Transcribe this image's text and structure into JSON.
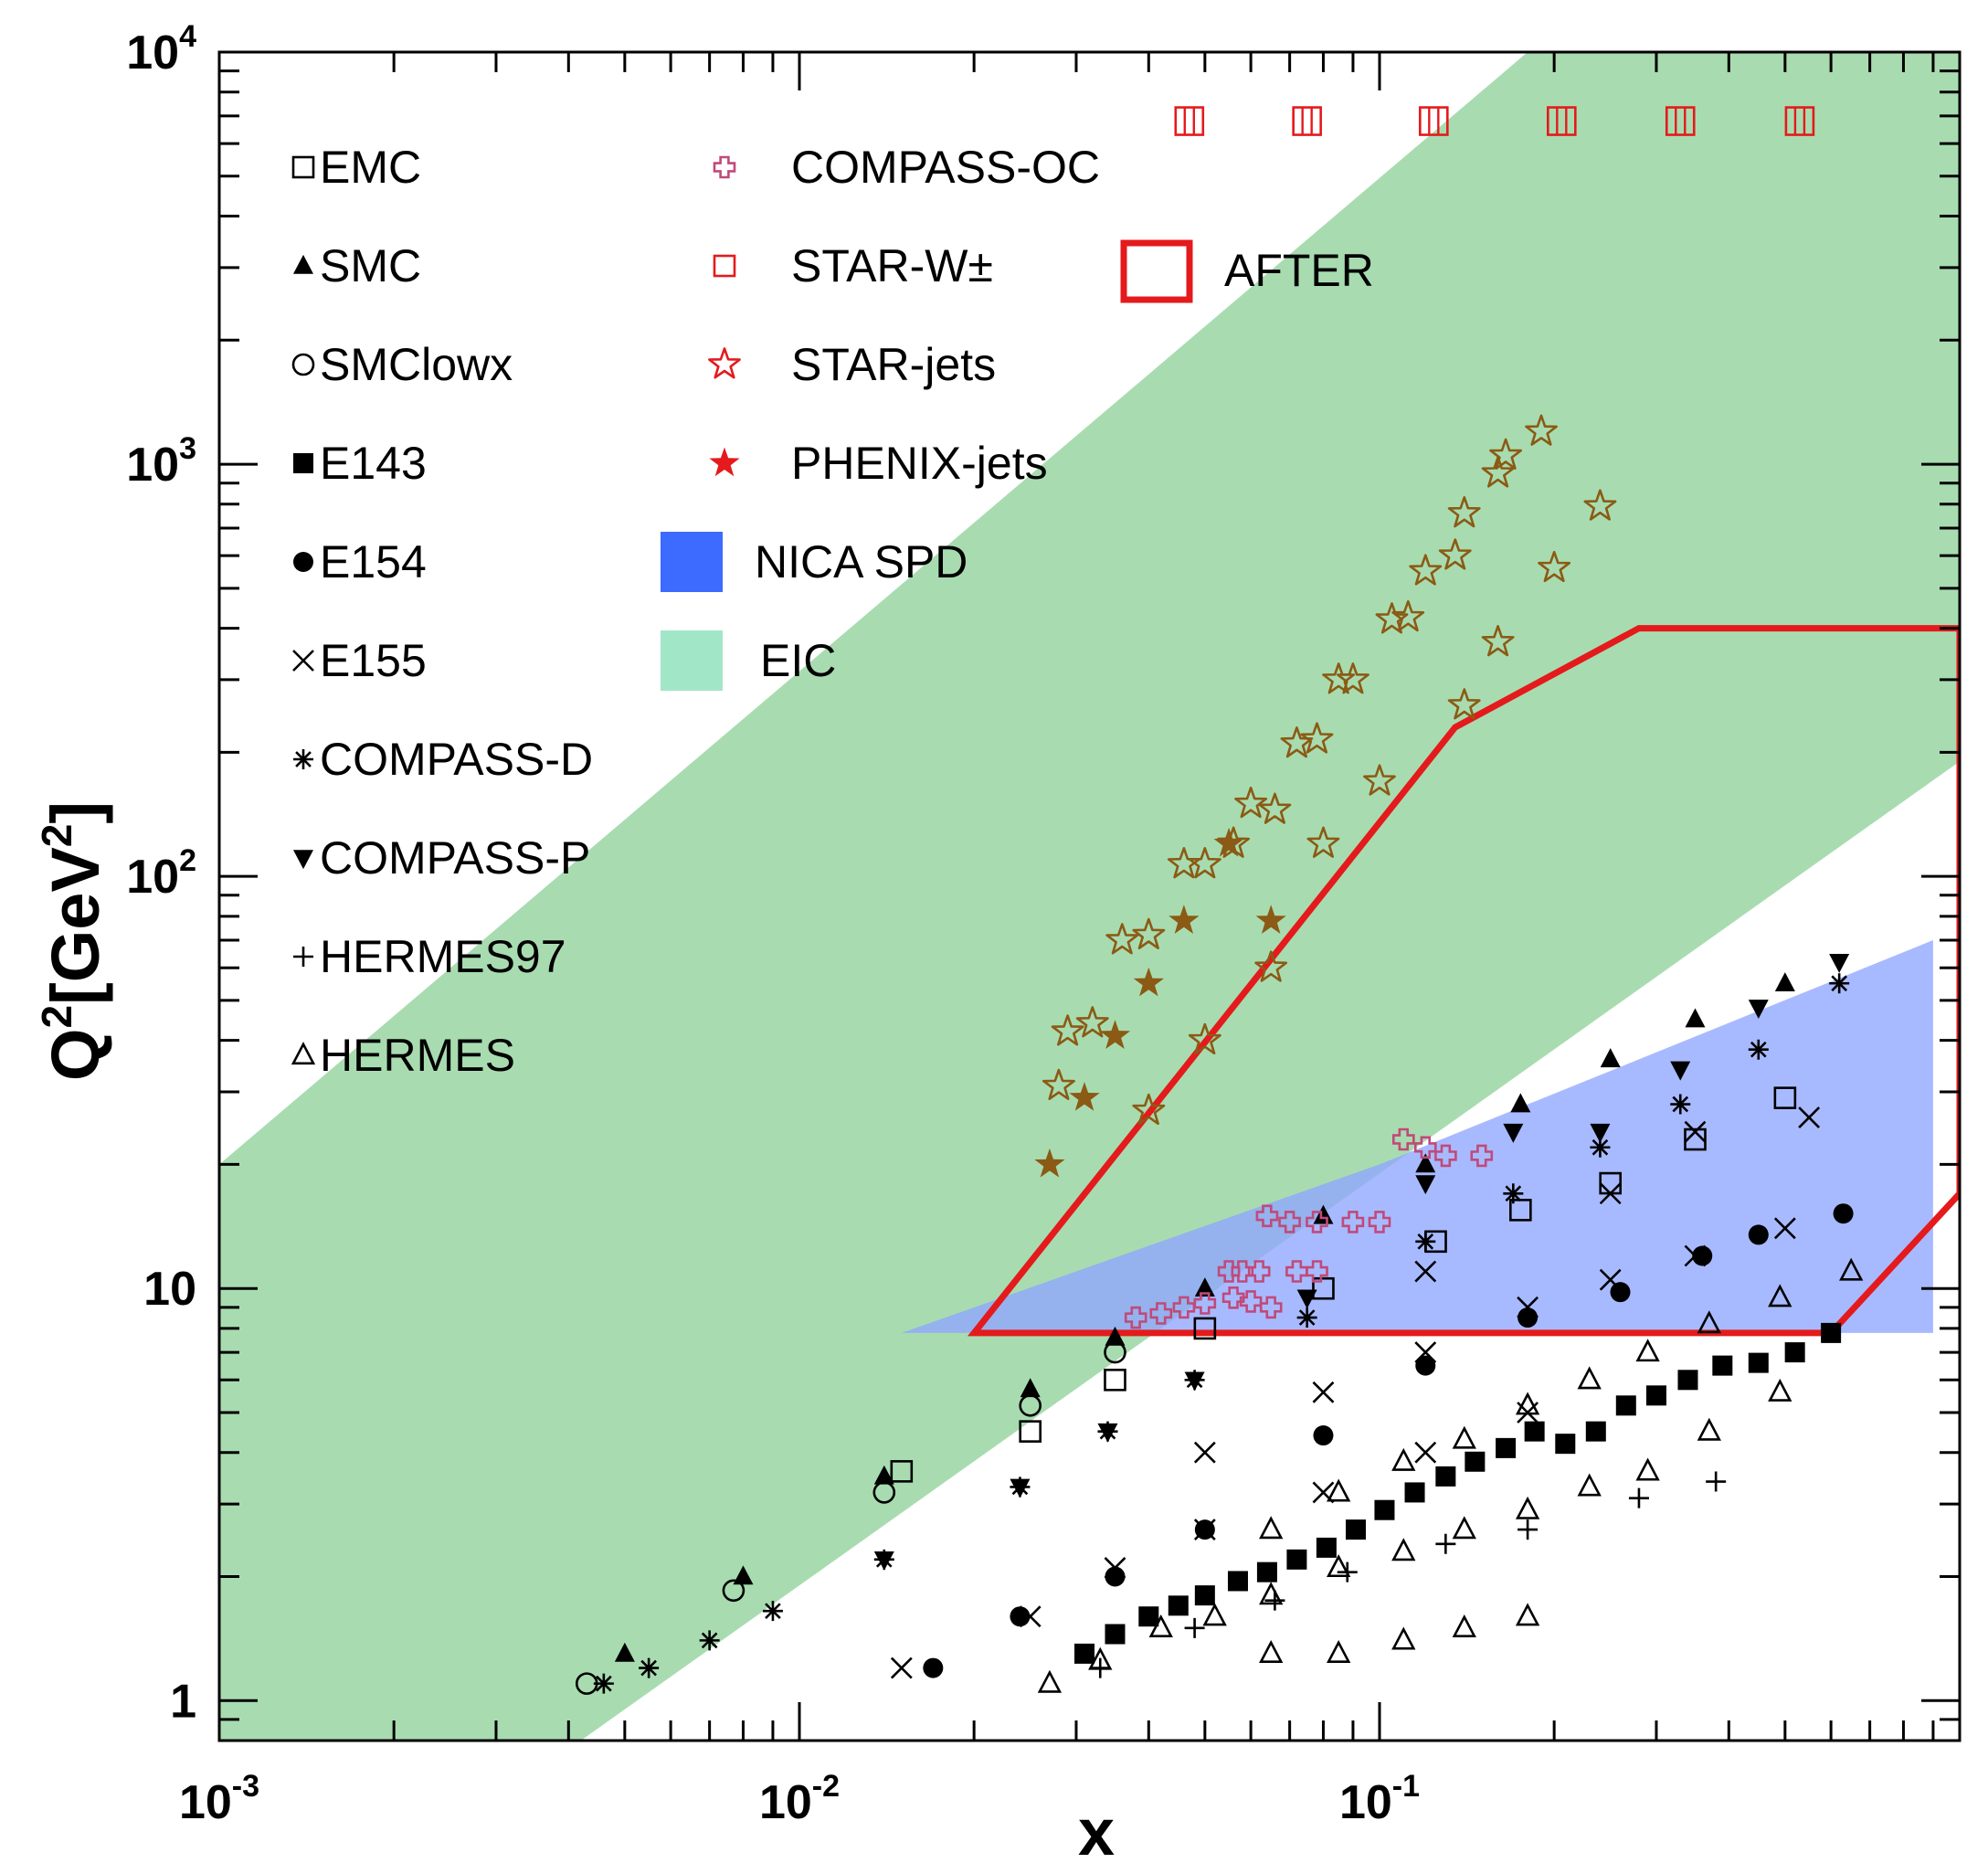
{
  "chart_data": {
    "type": "scatter",
    "title": "",
    "xlabel": "x",
    "ylabel_base": "Q",
    "ylabel_sup": "2",
    "ylabel_rest": "[GeV",
    "ylabel_sup2": "2",
    "ylabel_close": "]",
    "x_scale": "log",
    "y_scale": "log",
    "xlim": [
      0.001,
      1
    ],
    "ylim": [
      0.8,
      10000
    ],
    "grid": false,
    "legend_position": "top-left (inside plot)",
    "x_ticks": [
      {
        "value": 0.001,
        "base": "10",
        "exp": "-3"
      },
      {
        "value": 0.01,
        "base": "10",
        "exp": "-2"
      },
      {
        "value": 0.1,
        "base": "10",
        "exp": "-1"
      }
    ],
    "y_ticks": [
      {
        "value": 1,
        "base": "1",
        "exp": ""
      },
      {
        "value": 10,
        "base": "10",
        "exp": ""
      },
      {
        "value": 100,
        "base": "10",
        "exp": "2"
      },
      {
        "value": 1000,
        "base": "10",
        "exp": "3"
      },
      {
        "value": 10000,
        "base": "10",
        "exp": "4"
      }
    ],
    "regions": [
      {
        "name": "EIC",
        "color": "#a8dcb0",
        "points": [
          [
            0.001,
            20
          ],
          [
            0.001,
            0.8
          ],
          [
            0.0042,
            0.8
          ],
          [
            1,
            190
          ],
          [
            1,
            10000
          ],
          [
            0.18,
            10000
          ]
        ]
      },
      {
        "name": "NICA SPD",
        "color": "#8fa6ff",
        "points": [
          [
            0.015,
            7.8
          ],
          [
            0.9,
            7.8
          ],
          [
            0.9,
            70
          ],
          [
            0.1,
            20
          ]
        ]
      },
      {
        "name": "AFTER",
        "color": "#e41a1c",
        "points": [
          [
            0.02,
            7.8
          ],
          [
            0.135,
            230
          ],
          [
            0.28,
            400
          ],
          [
            1,
            400
          ],
          [
            1,
            17
          ],
          [
            0.6,
            7.8
          ]
        ]
      }
    ],
    "series": [
      {
        "name": "EMC",
        "marker": "open-square",
        "color": "#000000",
        "points": [
          [
            0.015,
            3.6
          ],
          [
            0.025,
            4.5
          ],
          [
            0.035,
            6
          ],
          [
            0.05,
            8
          ],
          [
            0.08,
            10
          ],
          [
            0.125,
            13
          ],
          [
            0.175,
            15.5
          ],
          [
            0.25,
            18
          ],
          [
            0.35,
            23
          ],
          [
            0.5,
            29
          ]
        ]
      },
      {
        "name": "SMC",
        "marker": "filled-triangle",
        "color": "#000000",
        "points": [
          [
            0.005,
            1.3
          ],
          [
            0.008,
            2
          ],
          [
            0.014,
            3.5
          ],
          [
            0.025,
            5.7
          ],
          [
            0.035,
            7.6
          ],
          [
            0.05,
            10
          ],
          [
            0.08,
            15
          ],
          [
            0.12,
            20
          ],
          [
            0.175,
            28
          ],
          [
            0.25,
            36
          ],
          [
            0.35,
            45
          ],
          [
            0.5,
            55
          ]
        ]
      },
      {
        "name": "SMClowx",
        "marker": "open-circle",
        "color": "#000000",
        "points": [
          [
            0.0043,
            1.1
          ],
          [
            0.0077,
            1.85
          ],
          [
            0.014,
            3.2
          ],
          [
            0.025,
            5.2
          ],
          [
            0.035,
            7
          ]
        ]
      },
      {
        "name": "E143",
        "marker": "filled-square",
        "color": "#000000",
        "points": [
          [
            0.031,
            1.3
          ],
          [
            0.035,
            1.45
          ],
          [
            0.04,
            1.6
          ],
          [
            0.045,
            1.7
          ],
          [
            0.05,
            1.8
          ],
          [
            0.057,
            1.95
          ],
          [
            0.064,
            2.05
          ],
          [
            0.072,
            2.2
          ],
          [
            0.081,
            2.35
          ],
          [
            0.091,
            2.6
          ],
          [
            0.102,
            2.9
          ],
          [
            0.115,
            3.2
          ],
          [
            0.13,
            3.5
          ],
          [
            0.146,
            3.8
          ],
          [
            0.165,
            4.1
          ],
          [
            0.185,
            4.5
          ],
          [
            0.209,
            4.2
          ],
          [
            0.236,
            4.5
          ],
          [
            0.266,
            5.2
          ],
          [
            0.3,
            5.5
          ],
          [
            0.34,
            6
          ],
          [
            0.39,
            6.5
          ],
          [
            0.45,
            6.6
          ],
          [
            0.52,
            7
          ],
          [
            0.6,
            7.8
          ]
        ]
      },
      {
        "name": "E154",
        "marker": "filled-circle",
        "color": "#000000",
        "points": [
          [
            0.017,
            1.2
          ],
          [
            0.024,
            1.6
          ],
          [
            0.035,
            2
          ],
          [
            0.05,
            2.6
          ],
          [
            0.08,
            4.4
          ],
          [
            0.12,
            6.5
          ],
          [
            0.18,
            8.5
          ],
          [
            0.26,
            9.8
          ],
          [
            0.36,
            12
          ],
          [
            0.45,
            13.5
          ],
          [
            0.63,
            15.2
          ]
        ]
      },
      {
        "name": "E155",
        "marker": "cross",
        "color": "#000000",
        "points": [
          [
            0.015,
            1.2
          ],
          [
            0.025,
            1.6
          ],
          [
            0.035,
            2.1
          ],
          [
            0.05,
            2.6
          ],
          [
            0.05,
            4
          ],
          [
            0.08,
            5.6
          ],
          [
            0.08,
            3.2
          ],
          [
            0.12,
            4
          ],
          [
            0.12,
            7
          ],
          [
            0.12,
            11
          ],
          [
            0.18,
            5
          ],
          [
            0.18,
            9
          ],
          [
            0.25,
            10.5
          ],
          [
            0.25,
            17
          ],
          [
            0.35,
            12
          ],
          [
            0.35,
            24
          ],
          [
            0.5,
            14
          ],
          [
            0.55,
            26
          ]
        ]
      },
      {
        "name": "COMPASS-D",
        "marker": "asterisk",
        "color": "#000000",
        "points": [
          [
            0.0046,
            1.1
          ],
          [
            0.0055,
            1.2
          ],
          [
            0.007,
            1.4
          ],
          [
            0.009,
            1.65
          ],
          [
            0.014,
            2.2
          ],
          [
            0.024,
            3.3
          ],
          [
            0.034,
            4.5
          ],
          [
            0.048,
            6
          ],
          [
            0.075,
            8.5
          ],
          [
            0.12,
            13
          ],
          [
            0.17,
            17
          ],
          [
            0.24,
            22
          ],
          [
            0.33,
            28
          ],
          [
            0.45,
            38
          ],
          [
            0.62,
            55
          ]
        ]
      },
      {
        "name": "COMPASS-P",
        "marker": "filled-down-triangle",
        "color": "#000000",
        "points": [
          [
            0.014,
            2.2
          ],
          [
            0.024,
            3.3
          ],
          [
            0.034,
            4.5
          ],
          [
            0.048,
            6
          ],
          [
            0.075,
            9.5
          ],
          [
            0.12,
            18
          ],
          [
            0.17,
            24
          ],
          [
            0.24,
            24
          ],
          [
            0.33,
            34
          ],
          [
            0.45,
            48
          ],
          [
            0.62,
            62
          ]
        ]
      },
      {
        "name": "HERMES97",
        "marker": "plus",
        "color": "#000000",
        "points": [
          [
            0.033,
            1.2
          ],
          [
            0.048,
            1.5
          ],
          [
            0.066,
            1.75
          ],
          [
            0.088,
            2.05
          ],
          [
            0.13,
            2.4
          ],
          [
            0.18,
            2.6
          ],
          [
            0.28,
            3.1
          ],
          [
            0.38,
            3.4
          ]
        ]
      },
      {
        "name": "HERMES",
        "marker": "open-triangle",
        "color": "#000000",
        "points": [
          [
            0.027,
            1.1
          ],
          [
            0.033,
            1.25
          ],
          [
            0.042,
            1.5
          ],
          [
            0.052,
            1.6
          ],
          [
            0.065,
            1.3
          ],
          [
            0.085,
            1.3
          ],
          [
            0.11,
            1.4
          ],
          [
            0.14,
            1.5
          ],
          [
            0.18,
            1.6
          ],
          [
            0.065,
            1.8
          ],
          [
            0.085,
            2.1
          ],
          [
            0.11,
            2.3
          ],
          [
            0.14,
            2.6
          ],
          [
            0.18,
            2.9
          ],
          [
            0.065,
            2.6
          ],
          [
            0.085,
            3.2
          ],
          [
            0.11,
            3.8
          ],
          [
            0.14,
            4.3
          ],
          [
            0.18,
            5.2
          ],
          [
            0.23,
            3.3
          ],
          [
            0.29,
            3.6
          ],
          [
            0.37,
            4.5
          ],
          [
            0.49,
            5.6
          ],
          [
            0.23,
            6
          ],
          [
            0.29,
            7
          ],
          [
            0.37,
            8.2
          ],
          [
            0.49,
            9.5
          ],
          [
            0.65,
            11
          ]
        ]
      },
      {
        "name": "COMPASS-OC",
        "marker": "open-cross",
        "color": "#c04a7a",
        "points": [
          [
            0.038,
            8.5
          ],
          [
            0.042,
            8.7
          ],
          [
            0.046,
            9
          ],
          [
            0.05,
            9.2
          ],
          [
            0.056,
            9.5
          ],
          [
            0.06,
            9.3
          ],
          [
            0.065,
            9
          ],
          [
            0.055,
            11
          ],
          [
            0.058,
            11
          ],
          [
            0.062,
            11
          ],
          [
            0.072,
            11
          ],
          [
            0.078,
            11
          ],
          [
            0.064,
            15
          ],
          [
            0.07,
            14.5
          ],
          [
            0.078,
            14.5
          ],
          [
            0.09,
            14.5
          ],
          [
            0.1,
            14.5
          ],
          [
            0.11,
            23
          ],
          [
            0.12,
            22
          ],
          [
            0.13,
            21
          ],
          [
            0.15,
            21
          ]
        ]
      },
      {
        "name": "STAR-W±",
        "marker": "open-square",
        "color": "#e41a1c",
        "points": [
          [
            0.047,
            6800
          ],
          [
            0.075,
            6800
          ],
          [
            0.124,
            6800
          ],
          [
            0.206,
            6800
          ],
          [
            0.33,
            6800
          ],
          [
            0.53,
            6800
          ]
        ]
      },
      {
        "name": "STAR-jets",
        "marker": "open-star",
        "color": "#8b5a14",
        "points": [
          [
            0.028,
            31
          ],
          [
            0.029,
            42
          ],
          [
            0.032,
            44
          ],
          [
            0.036,
            70
          ],
          [
            0.04,
            72
          ],
          [
            0.046,
            107
          ],
          [
            0.05,
            107
          ],
          [
            0.056,
            120
          ],
          [
            0.06,
            150
          ],
          [
            0.066,
            145
          ],
          [
            0.072,
            210
          ],
          [
            0.078,
            215
          ],
          [
            0.085,
            300
          ],
          [
            0.09,
            300
          ],
          [
            0.105,
            420
          ],
          [
            0.112,
            425
          ],
          [
            0.12,
            550
          ],
          [
            0.135,
            600
          ],
          [
            0.14,
            760
          ],
          [
            0.16,
            950
          ],
          [
            0.165,
            1050
          ],
          [
            0.19,
            1200
          ],
          [
            0.2,
            560
          ],
          [
            0.24,
            790
          ],
          [
            0.16,
            370
          ],
          [
            0.14,
            260
          ],
          [
            0.1,
            170
          ],
          [
            0.08,
            120
          ],
          [
            0.065,
            60
          ],
          [
            0.05,
            40
          ],
          [
            0.04,
            27
          ]
        ]
      },
      {
        "name": "PHENIX-jets",
        "marker": "filled-star",
        "color": "#8b5a14",
        "points": [
          [
            0.027,
            20
          ],
          [
            0.031,
            29
          ],
          [
            0.035,
            41
          ],
          [
            0.04,
            55
          ],
          [
            0.046,
            78
          ],
          [
            0.055,
            120
          ],
          [
            0.065,
            78
          ]
        ]
      }
    ],
    "legend": {
      "col1": [
        "EMC",
        "SMC",
        "SMClowx",
        "E143",
        "E154",
        "E155",
        "COMPASS-D",
        "COMPASS-P",
        "HERMES97",
        "HERMES"
      ],
      "col2": [
        "COMPASS-OC",
        "STAR-W±",
        "STAR-jets",
        "PHENIX-jets",
        "NICA SPD",
        "EIC"
      ],
      "col3": [
        "AFTER"
      ]
    },
    "colors": {
      "eic": "#a8dcb0",
      "eic_legend": "#a2e6c8",
      "nica": "#8fa6ff",
      "nica_legend": "#3d6aff",
      "after": "#e41a1c",
      "compass_oc": "#c04a7a",
      "star_w": "#e41a1c",
      "jets": "#8b5a14"
    }
  }
}
